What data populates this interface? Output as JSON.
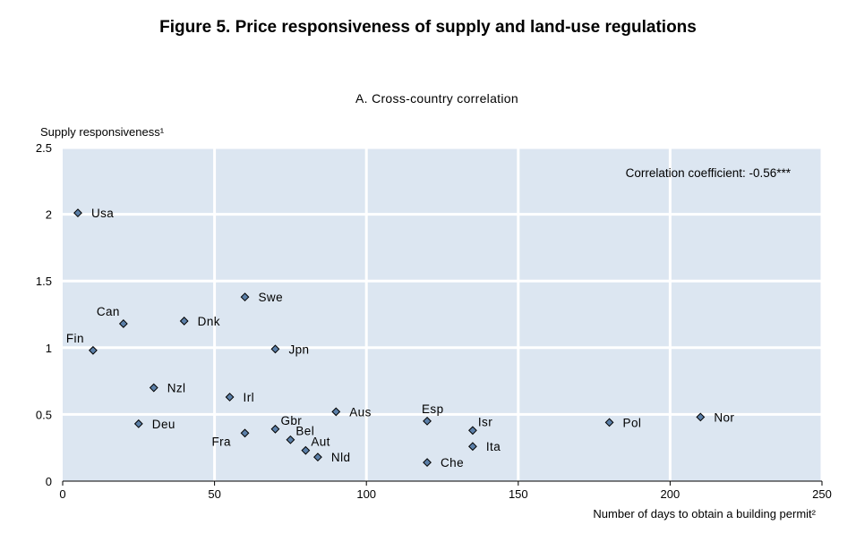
{
  "figure_title": "Figure 5. Price responsiveness of supply and land-use regulations",
  "panel_title": "A. Cross-country correlation",
  "chart_data": {
    "type": "scatter",
    "title": "A. Cross-country correlation",
    "ylabel": "Supply responsiveness¹",
    "xlabel": "Number of days to obtain a building permit²",
    "annotation": "Correlation coefficient: -0.56***",
    "xlim": [
      0,
      250
    ],
    "ylim": [
      0,
      2.5
    ],
    "xticks": [
      0,
      50,
      100,
      150,
      200,
      250
    ],
    "yticks": [
      0,
      0.5,
      1,
      1.5,
      2,
      2.5
    ],
    "xtick_labels": [
      "0",
      "50",
      "100",
      "150",
      "200",
      "250"
    ],
    "ytick_labels": [
      "0",
      "0.5",
      "1",
      "1.5",
      "2",
      "2.5"
    ],
    "grid": true,
    "marker_color": "#5b7fa8",
    "background_color": "#dce6f1",
    "points": [
      {
        "label": "Usa",
        "x": 5,
        "y": 2.01,
        "pos": "right"
      },
      {
        "label": "Can",
        "x": 20,
        "y": 1.18,
        "pos": "upleft"
      },
      {
        "label": "Fin",
        "x": 10,
        "y": 0.98,
        "pos": "upleft"
      },
      {
        "label": "Dnk",
        "x": 40,
        "y": 1.2,
        "pos": "right"
      },
      {
        "label": "Swe",
        "x": 60,
        "y": 1.38,
        "pos": "right"
      },
      {
        "label": "Jpn",
        "x": 70,
        "y": 0.99,
        "pos": "right"
      },
      {
        "label": "Nzl",
        "x": 30,
        "y": 0.7,
        "pos": "right"
      },
      {
        "label": "Irl",
        "x": 55,
        "y": 0.63,
        "pos": "right"
      },
      {
        "label": "Deu",
        "x": 25,
        "y": 0.43,
        "pos": "right"
      },
      {
        "label": "Fra",
        "x": 60,
        "y": 0.36,
        "pos": "downleft"
      },
      {
        "label": "Gbr",
        "x": 70,
        "y": 0.39,
        "pos": "upright"
      },
      {
        "label": "Bel",
        "x": 75,
        "y": 0.31,
        "pos": "upright"
      },
      {
        "label": "Aut",
        "x": 80,
        "y": 0.23,
        "pos": "upright"
      },
      {
        "label": "Nld",
        "x": 84,
        "y": 0.18,
        "pos": "right"
      },
      {
        "label": "Aus",
        "x": 90,
        "y": 0.52,
        "pos": "right"
      },
      {
        "label": "Esp",
        "x": 120,
        "y": 0.45,
        "pos": "above"
      },
      {
        "label": "Che",
        "x": 120,
        "y": 0.14,
        "pos": "right"
      },
      {
        "label": "Isr",
        "x": 135,
        "y": 0.38,
        "pos": "upright"
      },
      {
        "label": "Ita",
        "x": 135,
        "y": 0.26,
        "pos": "right"
      },
      {
        "label": "Pol",
        "x": 180,
        "y": 0.44,
        "pos": "right"
      },
      {
        "label": "Nor",
        "x": 210,
        "y": 0.48,
        "pos": "right"
      }
    ]
  }
}
